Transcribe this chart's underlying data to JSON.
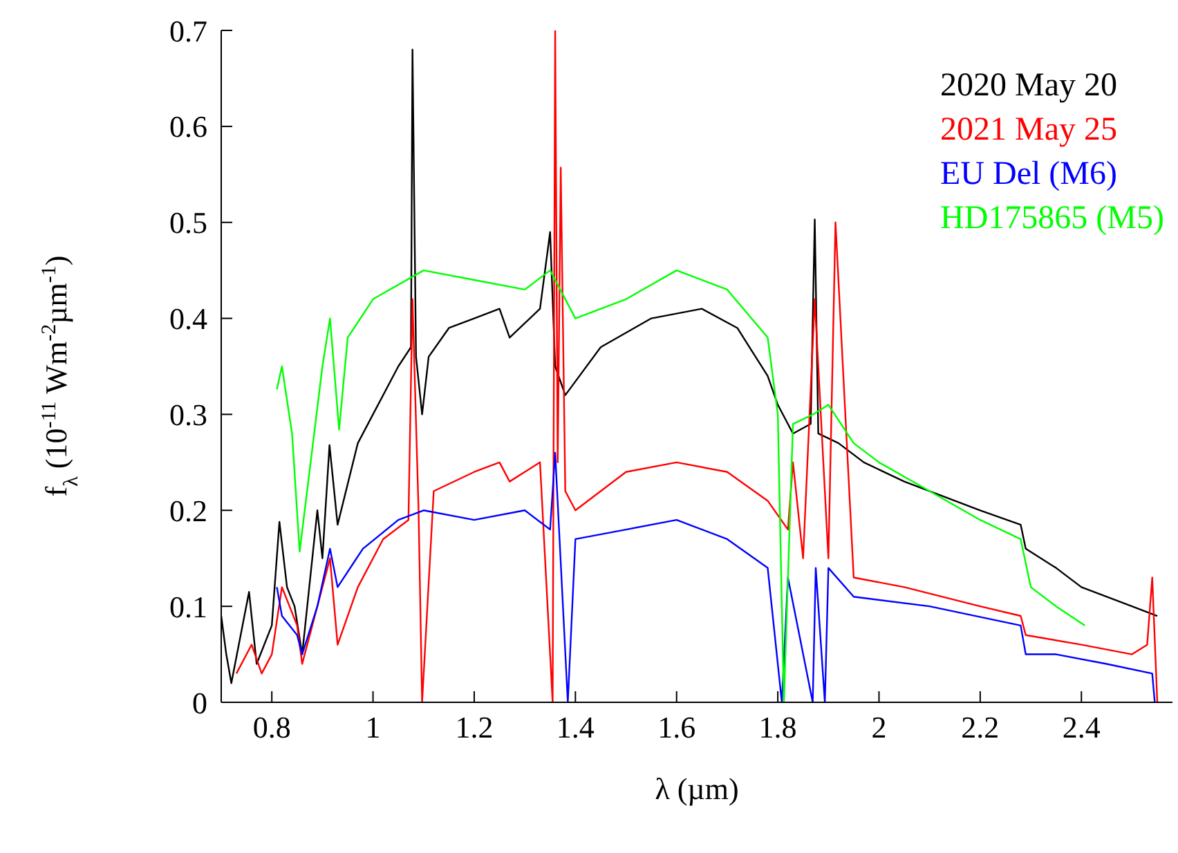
{
  "chart_data": {
    "type": "line",
    "xlabel": "λ (µm)",
    "ylabel": "f$_{λ}$ (10$^{-11}$  Wm$^{-2}$µm$^{-1}$)",
    "xlim": [
      0.7,
      2.58
    ],
    "xticks": [
      0.8,
      1,
      1.2,
      1.4,
      1.6,
      1.8,
      2,
      2.2,
      2.4
    ],
    "ylim": [
      0,
      0.7
    ],
    "yticks": [
      0,
      0.1,
      0.2,
      0.3,
      0.4,
      0.5,
      0.6,
      0.7
    ],
    "legend": "top right",
    "marker": "none",
    "line_style": "solid",
    "series": [
      {
        "name": "2020 May 20",
        "color": "#000000",
        "x": [
          0.7,
          0.71,
          0.72,
          0.755,
          0.77,
          0.8,
          0.815,
          0.83,
          0.845,
          0.86,
          0.89,
          0.9,
          0.914,
          0.93,
          0.97,
          1.0,
          1.05,
          1.075,
          1.078,
          1.085,
          1.097,
          1.11,
          1.15,
          1.2,
          1.25,
          1.27,
          1.33,
          1.35,
          1.36,
          1.38,
          1.45,
          1.55,
          1.65,
          1.72,
          1.78,
          1.8,
          1.83,
          1.865,
          1.873,
          1.88,
          1.92,
          1.97,
          2.05,
          2.2,
          2.28,
          2.29,
          2.35,
          2.4,
          2.5,
          2.55
        ],
        "values": [
          0.09,
          0.05,
          0.02,
          0.115,
          0.04,
          0.08,
          0.188,
          0.12,
          0.1,
          0.05,
          0.2,
          0.15,
          0.268,
          0.185,
          0.27,
          0.3,
          0.35,
          0.37,
          0.68,
          0.36,
          0.3,
          0.36,
          0.39,
          0.4,
          0.41,
          0.38,
          0.41,
          0.49,
          0.35,
          0.32,
          0.37,
          0.4,
          0.41,
          0.39,
          0.34,
          0.31,
          0.28,
          0.29,
          0.503,
          0.28,
          0.27,
          0.25,
          0.23,
          0.2,
          0.185,
          0.16,
          0.14,
          0.12,
          0.1,
          0.09
        ]
      },
      {
        "name": "2021 May 25",
        "color": "#ff0000",
        "x": [
          0.73,
          0.76,
          0.78,
          0.8,
          0.82,
          0.85,
          0.86,
          0.9,
          0.915,
          0.93,
          0.97,
          1.02,
          1.07,
          1.078,
          1.09,
          1.097,
          1.12,
          1.2,
          1.25,
          1.27,
          1.33,
          1.355,
          1.36,
          1.365,
          1.371,
          1.38,
          1.4,
          1.5,
          1.6,
          1.7,
          1.78,
          1.82,
          1.83,
          1.85,
          1.873,
          1.9,
          1.914,
          1.95,
          2.05,
          2.2,
          2.28,
          2.29,
          2.4,
          2.5,
          2.53,
          2.54,
          2.55
        ],
        "values": [
          0.03,
          0.06,
          0.03,
          0.05,
          0.12,
          0.08,
          0.04,
          0.12,
          0.15,
          0.06,
          0.12,
          0.17,
          0.19,
          0.42,
          0.2,
          0,
          0.22,
          0.24,
          0.25,
          0.23,
          0.25,
          0,
          0.7,
          0.25,
          0.557,
          0.22,
          0.2,
          0.24,
          0.25,
          0.24,
          0.21,
          0.18,
          0.25,
          0.15,
          0.42,
          0.15,
          0.5,
          0.13,
          0.12,
          0.1,
          0.09,
          0.07,
          0.06,
          0.05,
          0.06,
          0.13,
          0
        ]
      },
      {
        "name": "EU Del (M6)",
        "color": "#0000ff",
        "x": [
          0.81,
          0.82,
          0.85,
          0.86,
          0.89,
          0.915,
          0.93,
          0.98,
          1.05,
          1.1,
          1.2,
          1.3,
          1.35,
          1.36,
          1.385,
          1.4,
          1.5,
          1.6,
          1.7,
          1.78,
          1.808,
          1.82,
          1.869,
          1.875,
          1.893,
          1.9,
          1.95,
          2.1,
          2.28,
          2.29,
          2.35,
          2.45,
          2.54,
          2.545
        ],
        "values": [
          0.12,
          0.09,
          0.07,
          0.05,
          0.1,
          0.16,
          0.12,
          0.16,
          0.19,
          0.2,
          0.19,
          0.2,
          0.18,
          0.26,
          0,
          0.17,
          0.18,
          0.19,
          0.17,
          0.14,
          0,
          0.13,
          0,
          0.14,
          0,
          0.14,
          0.11,
          0.1,
          0.08,
          0.05,
          0.05,
          0.04,
          0.03,
          0
        ]
      },
      {
        "name": "HD175865 (M5)",
        "color": "#00ff00",
        "x": [
          0.81,
          0.82,
          0.84,
          0.855,
          0.9,
          0.915,
          0.933,
          0.95,
          1.0,
          1.1,
          1.2,
          1.3,
          1.35,
          1.4,
          1.5,
          1.6,
          1.7,
          1.78,
          1.8,
          1.812,
          1.83,
          1.87,
          1.9,
          1.95,
          2.0,
          2.1,
          2.2,
          2.28,
          2.3,
          2.35,
          2.407
        ],
        "values": [
          0.326,
          0.35,
          0.28,
          0.157,
          0.35,
          0.4,
          0.284,
          0.38,
          0.42,
          0.45,
          0.44,
          0.43,
          0.45,
          0.4,
          0.42,
          0.45,
          0.43,
          0.38,
          0.3,
          0,
          0.29,
          0.3,
          0.31,
          0.27,
          0.25,
          0.22,
          0.19,
          0.17,
          0.12,
          0.1,
          0.08
        ]
      }
    ]
  }
}
